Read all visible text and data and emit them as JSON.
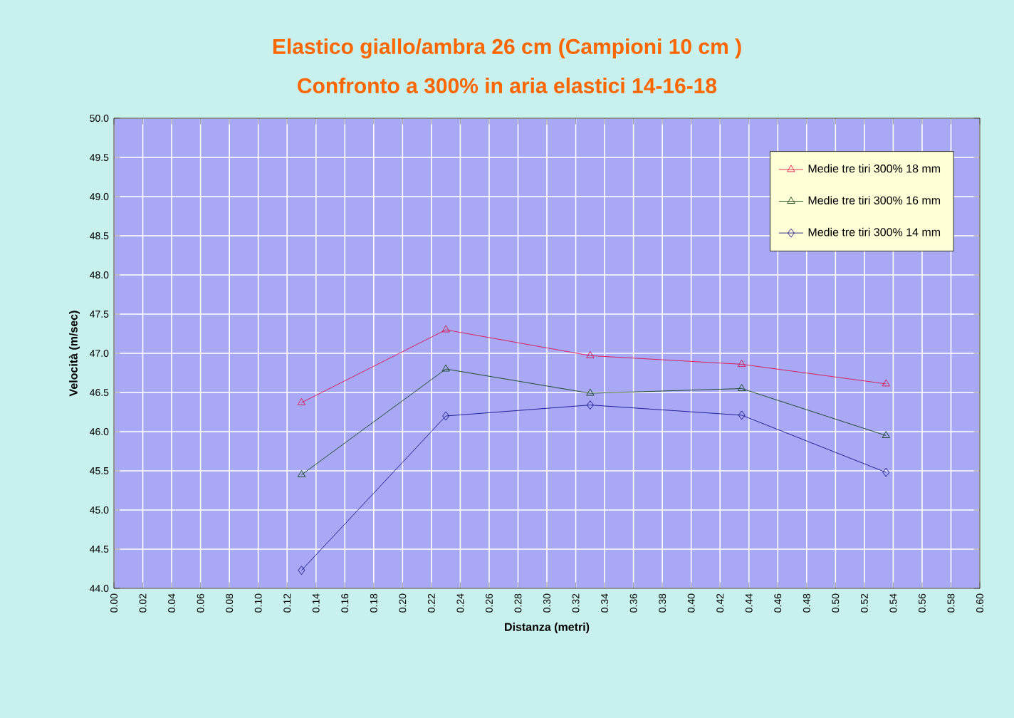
{
  "chart_data": {
    "type": "line",
    "title": "Elastico giallo/ambra  26 cm (Campioni 10 cm )",
    "subtitle": "Confronto a 300% in aria elastici 14-16-18",
    "xlabel": "Distanza (metri)",
    "ylabel": "Velocità (m/sec)",
    "x": [
      0.13,
      0.23,
      0.33,
      0.435,
      0.535
    ],
    "series": [
      {
        "name": "Medie tre tiri 300% 18 mm",
        "color": "#e0003a",
        "marker": "triangle",
        "values": [
          46.37,
          47.3,
          46.97,
          46.86,
          46.61
        ]
      },
      {
        "name": "Medie tre tiri 300% 16 mm",
        "color": "#003300",
        "marker": "triangle",
        "values": [
          45.45,
          46.8,
          46.49,
          46.55,
          45.95
        ]
      },
      {
        "name": "Medie tre tiri 300% 14 mm",
        "color": "#000080",
        "marker": "diamond",
        "values": [
          44.23,
          46.2,
          46.34,
          46.21,
          45.48
        ]
      }
    ],
    "xlim": [
      0,
      0.6
    ],
    "xticks": [
      {
        "value": 0,
        "label": "0.00"
      },
      0.02,
      0.04,
      0.06,
      0.08,
      {
        "value": 0.1,
        "label": "0.10"
      },
      0.12,
      0.14,
      0.16,
      0.18,
      {
        "value": 0.2,
        "label": "0.20"
      },
      0.22,
      0.24,
      0.26,
      0.28,
      {
        "value": 0.3,
        "label": "0.30"
      },
      0.32,
      0.34,
      0.36,
      0.38,
      {
        "value": 0.4,
        "label": "0.40"
      },
      0.42,
      0.44,
      0.46,
      0.48,
      {
        "value": 0.5,
        "label": "0.50"
      },
      0.52,
      0.54,
      0.56,
      0.58,
      {
        "value": 0.6,
        "label": "0.60"
      }
    ],
    "ylim": [
      44,
      50
    ],
    "yticks": [
      {
        "value": 44,
        "label": "44.0"
      },
      44.5,
      {
        "value": 45,
        "label": "45.0"
      },
      45.5,
      {
        "value": 46,
        "label": "46.0"
      },
      46.5,
      {
        "value": 47,
        "label": "47.0"
      },
      47.5,
      {
        "value": 48,
        "label": "48.0"
      },
      48.5,
      {
        "value": 49,
        "label": "49.0"
      },
      49.5,
      {
        "value": 50,
        "label": "50.0"
      }
    ],
    "grid": true,
    "legend": "top right"
  }
}
